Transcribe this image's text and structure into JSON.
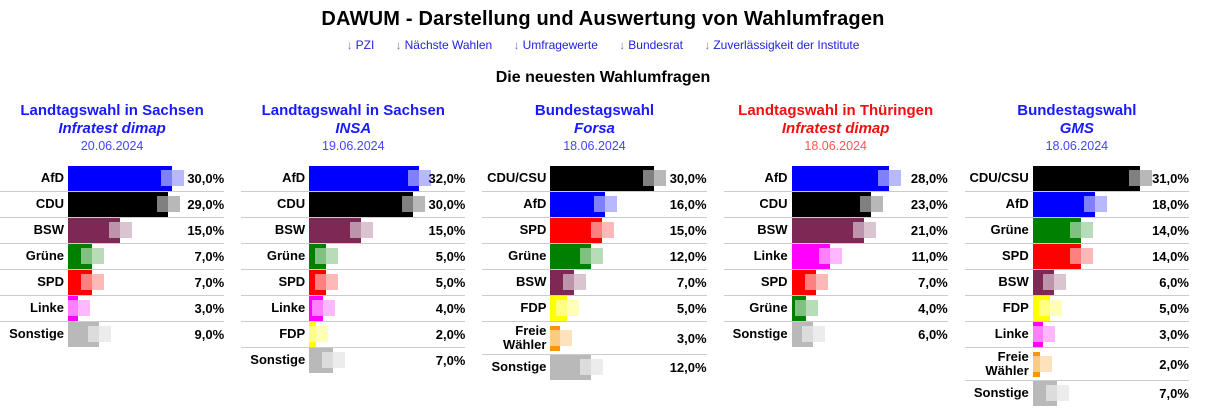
{
  "page": {
    "title": "DAWUM - Darstellung und Auswertung von Wahlumfragen",
    "section_title": "Die neuesten Wahlumfragen"
  },
  "nav": {
    "links": [
      {
        "arrow": "↓",
        "label": "PZI"
      },
      {
        "arrow": "↓",
        "label": "Nächste Wahlen"
      },
      {
        "arrow": "↓",
        "label": "Umfragewerte"
      },
      {
        "arrow": "↓",
        "label": "Bundesrat"
      },
      {
        "arrow": "↓",
        "label": "Zuverlässigkeit der Institute"
      }
    ]
  },
  "colors": {
    "link_blue": "#2222dd",
    "link_arrow": "#7777dd",
    "title_blue": "#1a1aff",
    "date_blue": "#4444ff",
    "title_red": "#ee1111",
    "date_red": "#ff5555",
    "separator": "#cccccc",
    "party": {
      "AfD": "#0000ff",
      "CDU": "#000000",
      "CDU/CSU": "#000000",
      "BSW": "#7d2855",
      "Grüne": "#008000",
      "SPD": "#ff0000",
      "Linke": "#ff00ff",
      "FDP": "#ffff00",
      "Freie Wähler": "#f7960a",
      "Sonstige": "#b9b9b9"
    }
  },
  "chart_data": [
    {
      "type": "bar",
      "orientation": "horizontal",
      "unit": "%",
      "title": "Landtagswahl in Sachsen",
      "institute": "Infratest dimap",
      "date": "20.06.2024",
      "title_color": "#1a1aff",
      "date_color": "#4444ff",
      "categories": [
        "AfD",
        "CDU",
        "BSW",
        "Grüne",
        "SPD",
        "Linke",
        "Sonstige"
      ],
      "values": [
        30,
        29,
        15,
        7,
        7,
        3,
        9
      ],
      "value_labels": [
        "30,0%",
        "29,0%",
        "15,0%",
        "7,0%",
        "7,0%",
        "3,0%",
        "9,0%"
      ],
      "bar_colors": [
        "#0000ff",
        "#000000",
        "#7d2855",
        "#008000",
        "#ff0000",
        "#ff00ff",
        "#b9b9b9"
      ]
    },
    {
      "type": "bar",
      "orientation": "horizontal",
      "unit": "%",
      "title": "Landtagswahl in Sachsen",
      "institute": "INSA",
      "date": "19.06.2024",
      "title_color": "#1a1aff",
      "date_color": "#4444ff",
      "categories": [
        "AfD",
        "CDU",
        "BSW",
        "Grüne",
        "SPD",
        "Linke",
        "FDP",
        "Sonstige"
      ],
      "values": [
        32,
        30,
        15,
        5,
        5,
        4,
        2,
        7
      ],
      "value_labels": [
        "32,0%",
        "30,0%",
        "15,0%",
        "5,0%",
        "5,0%",
        "4,0%",
        "2,0%",
        "7,0%"
      ],
      "bar_colors": [
        "#0000ff",
        "#000000",
        "#7d2855",
        "#008000",
        "#ff0000",
        "#ff00ff",
        "#ffff00",
        "#b9b9b9"
      ]
    },
    {
      "type": "bar",
      "orientation": "horizontal",
      "unit": "%",
      "title": "Bundestagswahl",
      "institute": "Forsa",
      "date": "18.06.2024",
      "title_color": "#1a1aff",
      "date_color": "#4444ff",
      "categories": [
        "CDU/CSU",
        "AfD",
        "SPD",
        "Grüne",
        "BSW",
        "FDP",
        "Freie Wähler",
        "Sonstige"
      ],
      "values": [
        30,
        16,
        15,
        12,
        7,
        5,
        3,
        12
      ],
      "value_labels": [
        "30,0%",
        "16,0%",
        "15,0%",
        "12,0%",
        "7,0%",
        "5,0%",
        "3,0%",
        "12,0%"
      ],
      "bar_colors": [
        "#000000",
        "#0000ff",
        "#ff0000",
        "#008000",
        "#7d2855",
        "#ffff00",
        "#f7960a",
        "#b9b9b9"
      ]
    },
    {
      "type": "bar",
      "orientation": "horizontal",
      "unit": "%",
      "title": "Landtagswahl in Thüringen",
      "institute": "Infratest dimap",
      "date": "18.06.2024",
      "title_color": "#ee1111",
      "date_color": "#ff5555",
      "categories": [
        "AfD",
        "CDU",
        "BSW",
        "Linke",
        "SPD",
        "Grüne",
        "Sonstige"
      ],
      "values": [
        28,
        23,
        21,
        11,
        7,
        4,
        6
      ],
      "value_labels": [
        "28,0%",
        "23,0%",
        "21,0%",
        "11,0%",
        "7,0%",
        "4,0%",
        "6,0%"
      ],
      "bar_colors": [
        "#0000ff",
        "#000000",
        "#7d2855",
        "#ff00ff",
        "#ff0000",
        "#008000",
        "#b9b9b9"
      ]
    },
    {
      "type": "bar",
      "orientation": "horizontal",
      "unit": "%",
      "title": "Bundestagswahl",
      "institute": "GMS",
      "date": "18.06.2024",
      "title_color": "#1a1aff",
      "date_color": "#4444ff",
      "categories": [
        "CDU/CSU",
        "AfD",
        "Grüne",
        "SPD",
        "BSW",
        "FDP",
        "Linke",
        "Freie Wähler",
        "Sonstige"
      ],
      "values": [
        31,
        18,
        14,
        14,
        6,
        5,
        3,
        2,
        7
      ],
      "value_labels": [
        "31,0%",
        "18,0%",
        "14,0%",
        "14,0%",
        "6,0%",
        "5,0%",
        "3,0%",
        "2,0%",
        "7,0%"
      ],
      "bar_colors": [
        "#000000",
        "#0000ff",
        "#008000",
        "#ff0000",
        "#7d2855",
        "#ffff00",
        "#ff00ff",
        "#f7960a",
        "#b9b9b9"
      ]
    }
  ]
}
